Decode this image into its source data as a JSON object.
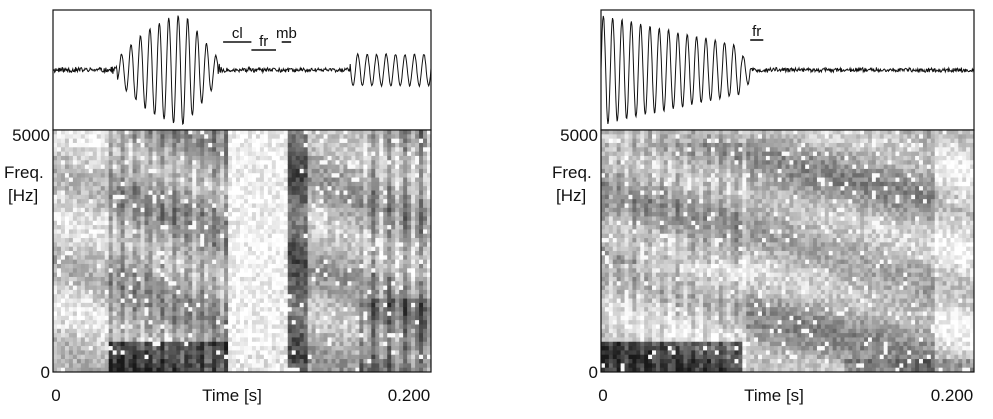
{
  "chart_data": [
    {
      "type": "heatmap",
      "kind": "waveform + spectrogram",
      "xlim": [
        0,
        0.2
      ],
      "ylim": [
        0,
        5000
      ],
      "y_tick_labels": [
        "5000",
        "0"
      ],
      "y_axis_label": [
        "Freq.",
        "[Hz]"
      ],
      "x_tick_labels": [
        "0",
        "0.200"
      ],
      "x_axis_label": "Time [s]",
      "segments": [
        {
          "label": "cl",
          "start": 0.09,
          "end": 0.105
        },
        {
          "label": "fr",
          "start": 0.105,
          "end": 0.118
        },
        {
          "label": "mb",
          "start": 0.121,
          "end": 0.126
        }
      ]
    },
    {
      "type": "heatmap",
      "kind": "waveform + spectrogram",
      "xlim": [
        0,
        0.2
      ],
      "ylim": [
        0,
        5000
      ],
      "y_tick_labels": [
        "5000",
        "0"
      ],
      "y_axis_label": [
        "Freq.",
        "[Hz]"
      ],
      "x_tick_labels": [
        "0",
        "0.200"
      ],
      "x_axis_label": "Time [s]",
      "segments": [
        {
          "label": "fr",
          "start": 0.08,
          "end": 0.087
        }
      ]
    }
  ]
}
